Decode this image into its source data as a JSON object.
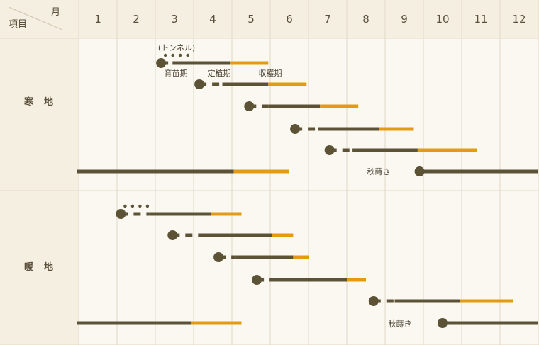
{
  "header": {
    "item_label": "項目",
    "month_label": "月",
    "months": [
      "1",
      "2",
      "3",
      "4",
      "5",
      "6",
      "7",
      "8",
      "9",
      "10",
      "11",
      "12"
    ]
  },
  "colors": {
    "background": "#fbf8f1",
    "header_bg": "#f5efe2",
    "grid_line": "#e2d9c6",
    "bar_dark": "#5c5337",
    "bar_harvest": "#e39c12"
  },
  "sections": [
    {
      "name": "寒　地",
      "rows": [
        {
          "dots": true,
          "sow": 3.15,
          "dash_end": 3.45,
          "plant": 3.45,
          "grow_end": 4.95,
          "harvest_end": 5.95
        },
        {
          "sow": 4.15,
          "dash_end": 4.75,
          "plant": 4.75,
          "grow_end": 5.95,
          "harvest_end": 6.95
        },
        {
          "sow": 5.45,
          "dash_end": 5.95,
          "plant": 5.95,
          "grow_end": 7.3,
          "harvest_end": 8.3
        },
        {
          "sow": 6.65,
          "dash_end": 7.25,
          "plant": 7.25,
          "grow_end": 8.85,
          "harvest_end": 9.75
        },
        {
          "sow": 7.55,
          "dash_end": 8.15,
          "plant": 8.15,
          "grow_end": 9.85,
          "harvest_end": 11.4
        },
        {
          "pre_grow": [
            0.95,
            5.05
          ],
          "pre_harvest": [
            5.05,
            6.5
          ],
          "autumn": true,
          "sow": 9.9,
          "grow_end": 13.0
        }
      ]
    },
    {
      "name": "暖　地",
      "rows": [
        {
          "dots": true,
          "sow": 2.1,
          "dash_end": 2.85,
          "plant": 2.85,
          "grow_end": 4.45,
          "harvest_end": 5.25
        },
        {
          "sow": 3.45,
          "dash_end": 4.25,
          "plant": 4.25,
          "grow_end": 6.05,
          "harvest_end": 6.6
        },
        {
          "sow": 4.65,
          "dash_end": 5.1,
          "plant": 5.1,
          "grow_end": 6.6,
          "harvest_end": 7.0
        },
        {
          "sow": 5.65,
          "dash_end": 6.1,
          "plant": 6.1,
          "grow_end": 8.0,
          "harvest_end": 8.5
        },
        {
          "sow": 8.7,
          "dash_end": 9.25,
          "plant": 9.25,
          "grow_end": 10.95,
          "harvest_end": 12.35
        },
        {
          "pre_grow": [
            0.95,
            3.95
          ],
          "pre_harvest": [
            3.95,
            5.25
          ],
          "autumn": true,
          "sow": 10.5,
          "grow_end": 13.0
        }
      ]
    }
  ],
  "annotations": {
    "tunnel": "(トンネル)",
    "nursery": "育苗期",
    "planting": "定植期",
    "harvest": "収穫期",
    "autumn_sowing": "秋蒔き"
  }
}
